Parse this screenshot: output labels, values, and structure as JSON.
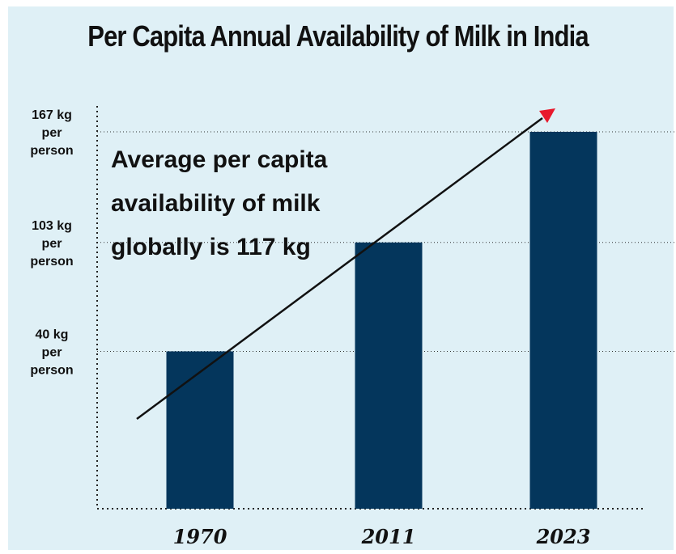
{
  "chart_data": {
    "type": "bar",
    "title": "Per Capita Annual Availability of Milk in India",
    "categories": [
      "1970",
      "2011",
      "2023"
    ],
    "values": [
      40,
      103,
      167
    ],
    "unit": "kg per person",
    "ylim": [
      -51,
      167
    ],
    "yticks": [
      {
        "value": 40,
        "label": [
          "40 kg",
          "per",
          "person"
        ]
      },
      {
        "value": 103,
        "label": [
          "103 kg",
          "per",
          "person"
        ]
      },
      {
        "value": 167,
        "label": [
          "167 kg",
          "per",
          "person"
        ]
      }
    ],
    "annotation": [
      "Average per capita",
      "availability of milk",
      "globally is 117 kg"
    ],
    "trend_arrow": true,
    "grid": "dotted horizontal lines at tick values",
    "colors": {
      "bar": "#04365c",
      "background": "#dff0f6",
      "arrow_line": "#111111",
      "arrow_head": "#e8192c"
    }
  }
}
